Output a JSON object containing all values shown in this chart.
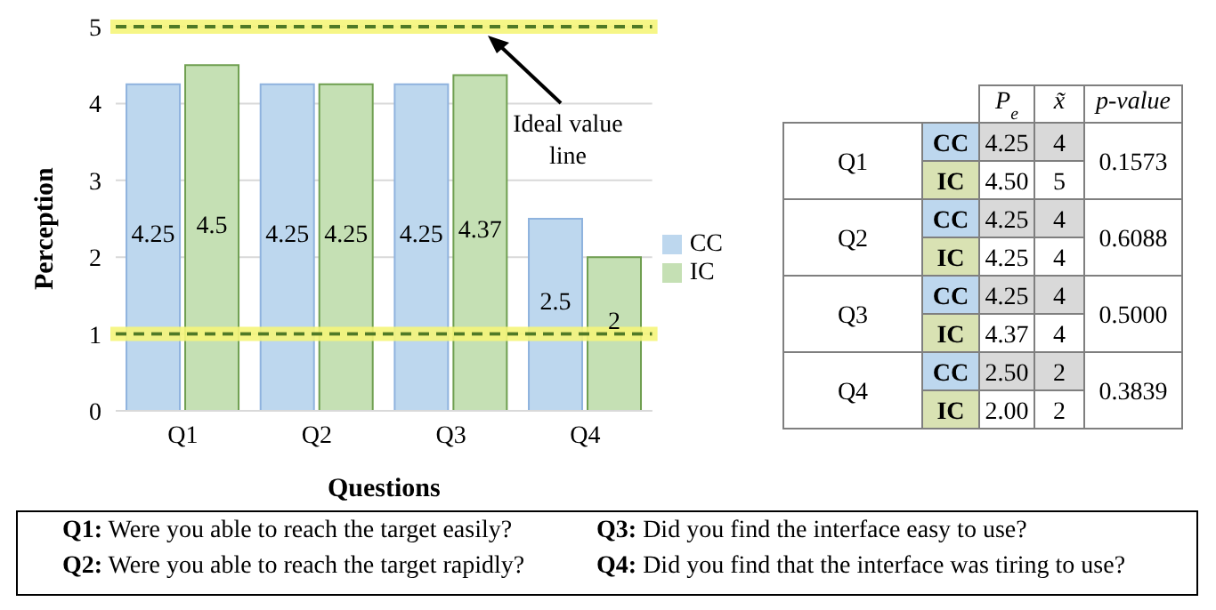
{
  "chart_data": [
    {
      "type": "bar",
      "xlabel": "Questions",
      "ylabel": "Perception",
      "categories": [
        "Q1",
        "Q2",
        "Q3",
        "Q4"
      ],
      "series": [
        {
          "name": "CC",
          "color": "#bdd7ee",
          "values": [
            4.25,
            4.25,
            4.25,
            2.5
          ]
        },
        {
          "name": "IC",
          "color": "#c5e0b4",
          "values": [
            4.5,
            4.25,
            4.37,
            2
          ]
        }
      ],
      "ylim": [
        0,
        5
      ],
      "yticks": [
        0,
        1,
        2,
        3,
        4,
        5
      ],
      "grid": "y",
      "legend": "right",
      "data_labels": true,
      "ref_lines": [
        {
          "axis": "y",
          "value": 5,
          "color": "#4f7a28",
          "line_style": "dashed"
        },
        {
          "axis": "y",
          "value": 1,
          "color": "#4f7a28",
          "line_style": "dashed"
        }
      ],
      "annotations": [
        "Ideal value line",
        "Q1: Were you able to reach the target easily?",
        "Q2: Were you able to reach the target rapidly?",
        "Q3: Did you find the interface easy to use?",
        "Q4: Did you find that the interface was tiring to use?"
      ]
    },
    {
      "type": "other",
      "categories": [
        null,
        null,
        "P$_{e}$",
        "x̃",
        "p-value"
      ],
      "colors": [
        "#bdd7ee",
        "#d9e2b3",
        "#d9d9d9"
      ],
      "cell_labels": [
        [
          "Q1",
          "CC",
          "4.25",
          "4",
          "0.1573"
        ],
        [
          null,
          "IC",
          "4.50",
          "5",
          null
        ],
        [
          "Q2",
          "CC",
          "4.25",
          "4",
          "0.6088"
        ],
        [
          null,
          "IC",
          "4.25",
          "4",
          null
        ],
        [
          "Q3",
          "CC",
          "4.25",
          "4",
          "0.5000"
        ],
        [
          null,
          "IC",
          "4.37",
          "4",
          null
        ],
        [
          "Q4",
          "CC",
          "2.50",
          "2",
          "0.3839"
        ],
        [
          null,
          "IC",
          "2.00",
          "2",
          null
        ]
      ]
    }
  ]
}
